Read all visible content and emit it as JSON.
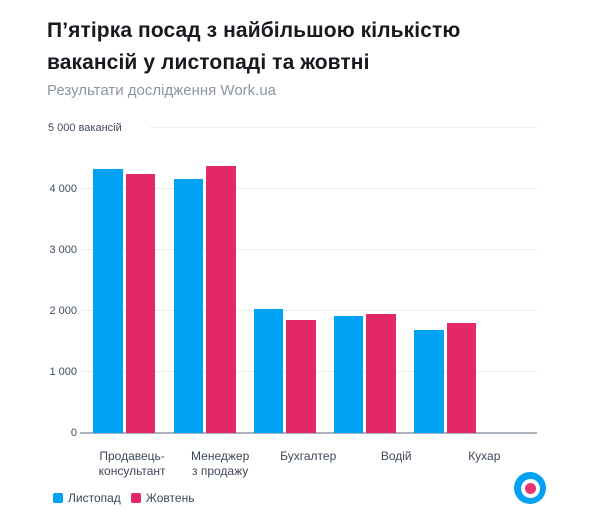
{
  "header": {
    "title": "П’ятірка посад з найбільшою кількістю вакансій у листопаді та жовтні",
    "title_lines": [
      "П’ятірка посад з найбільшою кількістю",
      "вакансій у листопаді та жовтні"
    ],
    "subtitle": "Результати дослідження Work.ua"
  },
  "chart_data": {
    "type": "bar",
    "title": "П’ятірка посад з найбільшою кількістю вакансій у листопаді та жовтні",
    "subtitle": "Результати дослідження Work.ua",
    "ylabel_top": "5 000 вакансій",
    "categories": [
      "Продавець-консультант",
      "Менеджер з продажу",
      "Бухгалтер",
      "Водій",
      "Кухар"
    ],
    "category_label_lines": [
      [
        "Продавець-",
        "консультант"
      ],
      [
        "Менеджер",
        "з продажу"
      ],
      [
        "Бухгалтер"
      ],
      [
        "Водій"
      ],
      [
        "Кухар"
      ]
    ],
    "series": [
      {
        "name": "Листопад",
        "color": "#01A2F3",
        "values": [
          4320,
          4170,
          2030,
          1915,
          1685
        ]
      },
      {
        "name": "Жовтень",
        "color": "#E32768",
        "values": [
          4240,
          4385,
          1860,
          1950,
          1800
        ]
      }
    ],
    "ylim": [
      0,
      5000
    ],
    "yticks": [
      0,
      1000,
      2000,
      3000,
      4000
    ],
    "ytick_labels": [
      "0",
      "1 000",
      "2 000",
      "3 000",
      "4 000"
    ],
    "grid": true,
    "legend_position": "bottom-left"
  },
  "legend": {
    "items": [
      {
        "label": "Листопад",
        "color": "#01A2F3"
      },
      {
        "label": "Жовтень",
        "color": "#E32768"
      }
    ]
  },
  "logo": {
    "name": "Work.ua",
    "ring_color": "#01A2F3",
    "dot_color": "#E8356F"
  }
}
